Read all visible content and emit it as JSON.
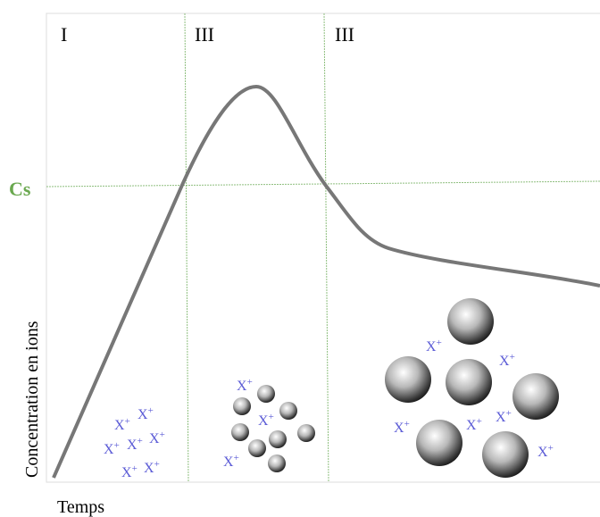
{
  "phases": [
    "I",
    "III",
    "III"
  ],
  "saturation_label": "Cs",
  "y_axis_label": "Concentration en ions",
  "x_axis_label": "Temps",
  "ion": {
    "symbol": "X",
    "charge": "+"
  }
}
